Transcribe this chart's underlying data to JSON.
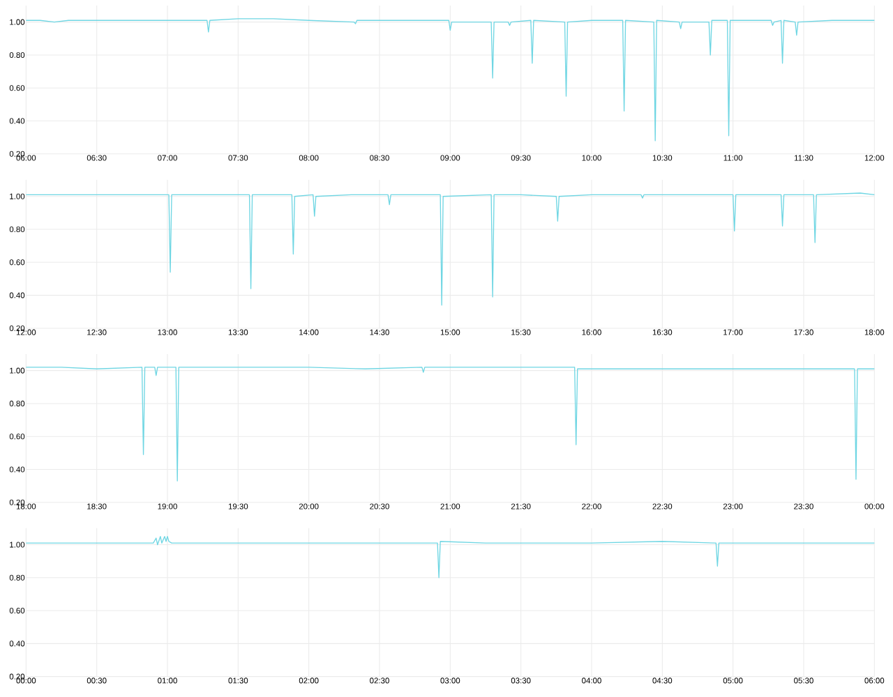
{
  "chart_data": [
    {
      "type": "line",
      "color": "#6fd6e3",
      "grid": true,
      "xlim": [
        6,
        12
      ],
      "ylim": [
        0.2,
        1.1
      ],
      "xticks": [
        {
          "value": 6,
          "label": "06:00"
        },
        {
          "value": 6.5,
          "label": "06:30"
        },
        {
          "value": 7,
          "label": "07:00"
        },
        {
          "value": 7.5,
          "label": "07:30"
        },
        {
          "value": 8,
          "label": "08:00"
        },
        {
          "value": 8.5,
          "label": "08:30"
        },
        {
          "value": 9,
          "label": "09:00"
        },
        {
          "value": 9.5,
          "label": "09:30"
        },
        {
          "value": 10,
          "label": "10:00"
        },
        {
          "value": 10.5,
          "label": "10:30"
        },
        {
          "value": 11,
          "label": "11:00"
        },
        {
          "value": 11.5,
          "label": "11:30"
        },
        {
          "value": 12,
          "label": "12:00"
        }
      ],
      "yticks": [
        {
          "value": 0.2,
          "label": "0.20"
        },
        {
          "value": 0.4,
          "label": "0.40"
        },
        {
          "value": 0.6,
          "label": "0.60"
        },
        {
          "value": 0.8,
          "label": "0.80"
        },
        {
          "value": 1.0,
          "label": "1.00"
        }
      ],
      "x": [
        6.0,
        6.1,
        6.2,
        6.3,
        6.5,
        6.75,
        7.0,
        7.28,
        7.29,
        7.3,
        7.5,
        7.75,
        8.0,
        8.32,
        8.33,
        8.34,
        8.6,
        8.99,
        9.0,
        9.01,
        9.29,
        9.3,
        9.31,
        9.41,
        9.42,
        9.43,
        9.57,
        9.58,
        9.59,
        9.81,
        9.82,
        9.83,
        10.0,
        10.22,
        10.23,
        10.24,
        10.44,
        10.45,
        10.46,
        10.62,
        10.63,
        10.64,
        10.83,
        10.84,
        10.85,
        10.96,
        10.97,
        10.98,
        11.27,
        11.28,
        11.29,
        11.34,
        11.35,
        11.36,
        11.44,
        11.45,
        11.46,
        11.7,
        12.0
      ],
      "values": [
        1.01,
        1.01,
        1.0,
        1.01,
        1.01,
        1.01,
        1.01,
        1.01,
        0.94,
        1.01,
        1.02,
        1.02,
        1.01,
        1.0,
        0.99,
        1.01,
        1.01,
        1.01,
        0.95,
        1.0,
        1.0,
        0.66,
        1.0,
        1.0,
        0.98,
        1.0,
        1.01,
        0.75,
        1.01,
        1.0,
        0.55,
        1.0,
        1.01,
        1.01,
        0.46,
        1.01,
        1.0,
        0.28,
        1.01,
        1.0,
        0.96,
        1.0,
        1.0,
        0.8,
        1.01,
        1.01,
        0.31,
        1.01,
        1.01,
        0.98,
        1.0,
        1.01,
        0.75,
        1.01,
        1.0,
        0.92,
        1.0,
        1.01,
        1.01
      ]
    },
    {
      "type": "line",
      "color": "#6fd6e3",
      "grid": true,
      "xlim": [
        12,
        18
      ],
      "ylim": [
        0.2,
        1.1
      ],
      "xticks": [
        {
          "value": 12,
          "label": "12:00"
        },
        {
          "value": 12.5,
          "label": "12:30"
        },
        {
          "value": 13,
          "label": "13:00"
        },
        {
          "value": 13.5,
          "label": "13:30"
        },
        {
          "value": 14,
          "label": "14:00"
        },
        {
          "value": 14.5,
          "label": "14:30"
        },
        {
          "value": 15,
          "label": "15:00"
        },
        {
          "value": 15.5,
          "label": "15:30"
        },
        {
          "value": 16,
          "label": "16:00"
        },
        {
          "value": 16.5,
          "label": "16:30"
        },
        {
          "value": 17,
          "label": "17:00"
        },
        {
          "value": 17.5,
          "label": "17:30"
        },
        {
          "value": 18,
          "label": "18:00"
        }
      ],
      "yticks": [
        {
          "value": 0.2,
          "label": "0.20"
        },
        {
          "value": 0.4,
          "label": "0.40"
        },
        {
          "value": 0.6,
          "label": "0.60"
        },
        {
          "value": 0.8,
          "label": "0.80"
        },
        {
          "value": 1.0,
          "label": "1.00"
        }
      ],
      "x": [
        12.0,
        12.25,
        12.5,
        12.75,
        13.01,
        13.02,
        13.03,
        13.3,
        13.58,
        13.59,
        13.6,
        13.88,
        13.89,
        13.9,
        14.03,
        14.04,
        14.05,
        14.3,
        14.56,
        14.57,
        14.58,
        14.93,
        14.94,
        14.95,
        15.29,
        15.3,
        15.31,
        15.5,
        15.75,
        15.76,
        15.77,
        16.0,
        16.35,
        16.36,
        16.37,
        16.7,
        17.0,
        17.01,
        17.02,
        17.34,
        17.35,
        17.36,
        17.57,
        17.58,
        17.59,
        17.9,
        18.0
      ],
      "values": [
        1.01,
        1.01,
        1.01,
        1.01,
        1.01,
        0.54,
        1.01,
        1.01,
        1.01,
        0.44,
        1.01,
        1.01,
        0.65,
        1.0,
        1.01,
        0.88,
        1.0,
        1.01,
        1.01,
        0.95,
        1.01,
        1.01,
        0.34,
        1.0,
        1.01,
        0.39,
        1.01,
        1.01,
        1.0,
        0.85,
        1.0,
        1.01,
        1.01,
        0.99,
        1.01,
        1.01,
        1.01,
        0.79,
        1.01,
        1.01,
        0.82,
        1.01,
        1.01,
        0.72,
        1.01,
        1.02,
        1.01
      ]
    },
    {
      "type": "line",
      "color": "#6fd6e3",
      "grid": true,
      "xlim": [
        18,
        24
      ],
      "ylim": [
        0.2,
        1.1
      ],
      "xticks": [
        {
          "value": 18,
          "label": "18:00"
        },
        {
          "value": 18.5,
          "label": "18:30"
        },
        {
          "value": 19,
          "label": "19:00"
        },
        {
          "value": 19.5,
          "label": "19:30"
        },
        {
          "value": 20,
          "label": "20:00"
        },
        {
          "value": 20.5,
          "label": "20:30"
        },
        {
          "value": 21,
          "label": "21:00"
        },
        {
          "value": 21.5,
          "label": "21:30"
        },
        {
          "value": 22,
          "label": "22:00"
        },
        {
          "value": 22.5,
          "label": "22:30"
        },
        {
          "value": 23,
          "label": "23:00"
        },
        {
          "value": 23.5,
          "label": "23:30"
        },
        {
          "value": 24,
          "label": "00:00"
        }
      ],
      "yticks": [
        {
          "value": 0.2,
          "label": "0.20"
        },
        {
          "value": 0.4,
          "label": "0.40"
        },
        {
          "value": 0.6,
          "label": "0.60"
        },
        {
          "value": 0.8,
          "label": "0.80"
        },
        {
          "value": 1.0,
          "label": "1.00"
        }
      ],
      "x": [
        18.0,
        18.25,
        18.5,
        18.82,
        18.83,
        18.84,
        18.91,
        18.92,
        18.93,
        19.06,
        19.07,
        19.08,
        19.5,
        20.0,
        20.4,
        20.8,
        20.81,
        20.82,
        21.25,
        21.6,
        21.88,
        21.89,
        21.9,
        22.25,
        22.75,
        23.25,
        23.6,
        23.86,
        23.87,
        23.88,
        24.0
      ],
      "values": [
        1.02,
        1.02,
        1.01,
        1.02,
        0.49,
        1.02,
        1.02,
        0.97,
        1.02,
        1.02,
        0.33,
        1.02,
        1.02,
        1.02,
        1.01,
        1.02,
        0.99,
        1.02,
        1.02,
        1.02,
        1.02,
        0.55,
        1.01,
        1.01,
        1.01,
        1.01,
        1.01,
        1.01,
        0.34,
        1.01,
        1.01
      ]
    },
    {
      "type": "line",
      "color": "#6fd6e3",
      "grid": true,
      "xlim": [
        0,
        6
      ],
      "ylim": [
        0.2,
        1.1
      ],
      "xticks": [
        {
          "value": 0,
          "label": "00:00"
        },
        {
          "value": 0.5,
          "label": "00:30"
        },
        {
          "value": 1,
          "label": "01:00"
        },
        {
          "value": 1.5,
          "label": "01:30"
        },
        {
          "value": 2,
          "label": "02:00"
        },
        {
          "value": 2.5,
          "label": "02:30"
        },
        {
          "value": 3,
          "label": "03:00"
        },
        {
          "value": 3.5,
          "label": "03:30"
        },
        {
          "value": 4,
          "label": "04:00"
        },
        {
          "value": 4.5,
          "label": "04:30"
        },
        {
          "value": 5,
          "label": "05:00"
        },
        {
          "value": 5.5,
          "label": "05:30"
        },
        {
          "value": 6,
          "label": "06:00"
        }
      ],
      "yticks": [
        {
          "value": 0.2,
          "label": "0.20"
        },
        {
          "value": 0.4,
          "label": "0.40"
        },
        {
          "value": 0.6,
          "label": "0.60"
        },
        {
          "value": 0.8,
          "label": "0.80"
        },
        {
          "value": 1.0,
          "label": "1.00"
        }
      ],
      "x": [
        0.0,
        0.25,
        0.5,
        0.75,
        0.9,
        0.92,
        0.93,
        0.95,
        0.96,
        0.98,
        0.99,
        1.0,
        1.01,
        1.03,
        1.25,
        1.5,
        2.0,
        2.5,
        2.91,
        2.92,
        2.93,
        3.25,
        3.5,
        4.0,
        4.5,
        4.88,
        4.89,
        4.9,
        5.25,
        5.5,
        6.0
      ],
      "values": [
        1.01,
        1.01,
        1.01,
        1.01,
        1.01,
        1.04,
        1.0,
        1.05,
        1.01,
        1.05,
        1.02,
        1.05,
        1.02,
        1.01,
        1.01,
        1.01,
        1.01,
        1.01,
        1.01,
        0.8,
        1.02,
        1.01,
        1.01,
        1.01,
        1.02,
        1.01,
        0.87,
        1.01,
        1.01,
        1.01,
        1.01
      ]
    }
  ]
}
